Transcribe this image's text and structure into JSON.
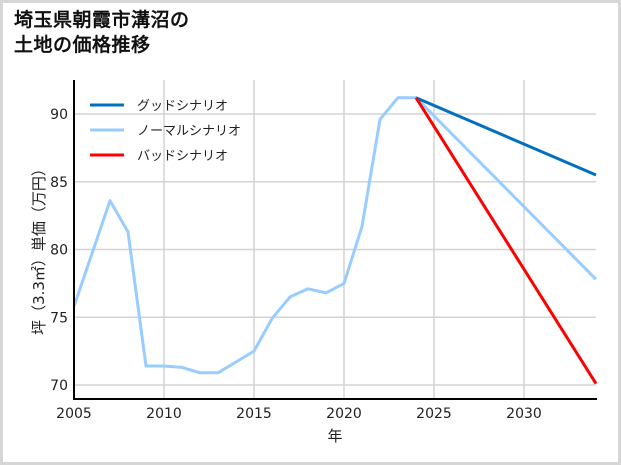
{
  "title_line1": "埼玉県朝霞市溝沼の",
  "title_line2": "土地の価格推移",
  "chart_data": {
    "type": "line",
    "title": "埼玉県朝霞市溝沼の土地の価格推移",
    "xlabel": "年",
    "ylabel": "坪（3.3㎡）単価（万円）",
    "xlim": [
      2005,
      2034
    ],
    "ylim": [
      69,
      92.5
    ],
    "x_ticks": [
      2005,
      2010,
      2015,
      2020,
      2025,
      2030
    ],
    "y_ticks": [
      70,
      75,
      80,
      85,
      90
    ],
    "grid": true,
    "legend_position": "upper-left",
    "series": [
      {
        "name": "グッドシナリオ",
        "color": "#0070c0",
        "x": [
          2024,
          2034
        ],
        "values": [
          91.2,
          85.5
        ]
      },
      {
        "name": "ノーマルシナリオ",
        "color": "#99ccff",
        "x": [
          2005,
          2007,
          2008,
          2009,
          2010,
          2011,
          2012,
          2013,
          2014,
          2015,
          2016,
          2017,
          2018,
          2019,
          2020,
          2021,
          2022,
          2023,
          2024,
          2034
        ],
        "values": [
          75.8,
          83.6,
          81.3,
          71.4,
          71.4,
          71.3,
          70.9,
          70.9,
          71.7,
          72.5,
          74.9,
          76.5,
          77.1,
          76.8,
          77.5,
          81.7,
          89.6,
          91.2,
          91.2,
          77.8
        ]
      },
      {
        "name": "バッドシナリオ",
        "color": "#ff0000",
        "x": [
          2024,
          2034
        ],
        "values": [
          91.2,
          70.1
        ]
      }
    ]
  },
  "legend": [
    {
      "label": "グッドシナリオ",
      "color": "#0070c0"
    },
    {
      "label": "ノーマルシナリオ",
      "color": "#99ccff"
    },
    {
      "label": "バッドシナリオ",
      "color": "#ff0000"
    }
  ],
  "axes": {
    "x_label": "年",
    "y_label": "坪（3.3㎡）単価（万円）",
    "x_tick_labels": [
      "2005",
      "2010",
      "2015",
      "2020",
      "2025",
      "2030"
    ],
    "y_tick_labels": [
      "90",
      "85",
      "80",
      "75",
      "70"
    ]
  }
}
